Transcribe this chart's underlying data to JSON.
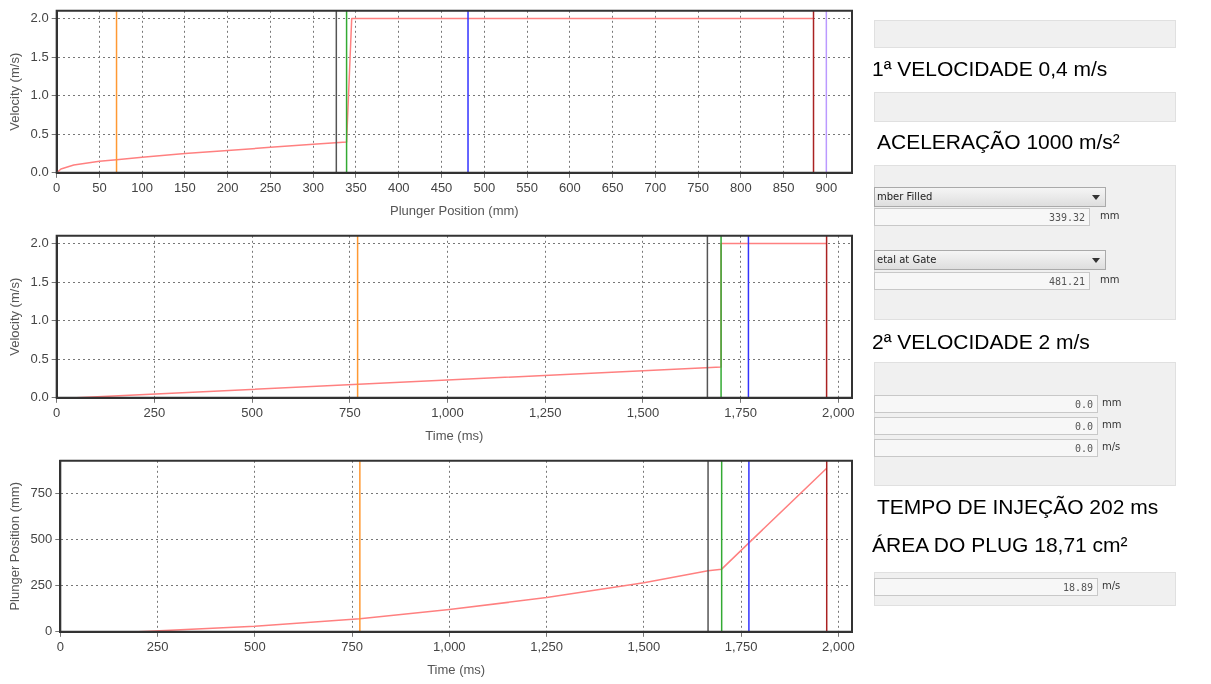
{
  "chart_data": [
    {
      "type": "line",
      "xlabel": "Plunger Position (mm)",
      "ylabel": "Velocity (m/s)",
      "x": [
        0,
        5,
        20,
        50,
        70,
        100,
        150,
        200,
        250,
        300,
        339,
        345,
        885
      ],
      "series": [
        {
          "color": "#ff8080",
          "values": [
            0,
            0.05,
            0.1,
            0.15,
            0.17,
            0.2,
            0.25,
            0.29,
            0.33,
            0.37,
            0.4,
            2.0,
            2.0
          ]
        }
      ],
      "xlim": [
        0,
        930
      ],
      "xticks": [
        0,
        50,
        100,
        150,
        200,
        250,
        300,
        350,
        400,
        450,
        500,
        550,
        600,
        650,
        700,
        750,
        800,
        850,
        900
      ],
      "ylim": [
        0,
        2.1
      ],
      "yticks": [
        {
          "value": 0,
          "label": "0.0"
        },
        {
          "value": 0.5,
          "label": "0.5"
        },
        {
          "value": 1,
          "label": "1.0"
        },
        {
          "value": 1.5,
          "label": "1.5"
        },
        {
          "value": 2,
          "label": "2.0"
        }
      ],
      "grid": true,
      "ref_lines": [
        {
          "axis": "x",
          "value": 70,
          "color": "#ff9933"
        },
        {
          "axis": "x",
          "value": 327,
          "color": "#555555"
        },
        {
          "axis": "x",
          "value": 339,
          "color": "#33aa33"
        },
        {
          "axis": "x",
          "value": 481,
          "color": "#3333ff"
        },
        {
          "axis": "x",
          "value": 885,
          "color": "#aa2222"
        },
        {
          "axis": "x",
          "value": 900,
          "color": "#bb99ff"
        }
      ]
    },
    {
      "type": "line",
      "xlabel": "Time (ms)",
      "ylabel": "Velocity (m/s)",
      "x": [
        50,
        1700,
        1700,
        1970
      ],
      "series": [
        {
          "color": "#ff8080",
          "values": [
            0,
            0.4,
            2.0,
            2.0
          ]
        }
      ],
      "xlim": [
        0,
        2035
      ],
      "xticks": [
        0,
        250,
        500,
        750,
        {
          "value": 1000,
          "label": "1,000"
        },
        {
          "value": 1250,
          "label": "1,250"
        },
        {
          "value": 1500,
          "label": "1,500"
        },
        {
          "value": 1750,
          "label": "1,750"
        },
        {
          "value": 2000,
          "label": "2,000"
        }
      ],
      "ylim": [
        0,
        2.1
      ],
      "yticks": [
        {
          "value": 0,
          "label": "0.0"
        },
        {
          "value": 0.5,
          "label": "0.5"
        },
        {
          "value": 1,
          "label": "1.0"
        },
        {
          "value": 1.5,
          "label": "1.5"
        },
        {
          "value": 2,
          "label": "2.0"
        }
      ],
      "grid": true,
      "ref_lines": [
        {
          "axis": "x",
          "value": 770,
          "color": "#ff9933"
        },
        {
          "axis": "x",
          "value": 1665,
          "color": "#555555"
        },
        {
          "axis": "x",
          "value": 1700,
          "color": "#33aa33"
        },
        {
          "axis": "x",
          "value": 1770,
          "color": "#3333ff"
        },
        {
          "axis": "x",
          "value": 1970,
          "color": "#aa2222"
        }
      ]
    },
    {
      "type": "line",
      "xlabel": "Time (ms)",
      "ylabel": "Plunger Position (mm)",
      "x": [
        200,
        500,
        770,
        1000,
        1250,
        1500,
        1665,
        1700,
        1770,
        1970
      ],
      "series": [
        {
          "color": "#ff8080",
          "values": [
            0,
            30,
            70,
            120,
            185,
            265,
            330,
            339,
            481,
            885
          ]
        }
      ],
      "xlim": [
        0,
        2035
      ],
      "xticks": [
        0,
        250,
        500,
        750,
        {
          "value": 1000,
          "label": "1,000"
        },
        {
          "value": 1250,
          "label": "1,250"
        },
        {
          "value": 1500,
          "label": "1,500"
        },
        {
          "value": 1750,
          "label": "1,750"
        },
        {
          "value": 2000,
          "label": "2,000"
        }
      ],
      "ylim": [
        0,
        925
      ],
      "yticks": [
        0,
        250,
        500,
        750
      ],
      "grid": true,
      "ref_lines": [
        {
          "axis": "x",
          "value": 770,
          "color": "#ff9933"
        },
        {
          "axis": "x",
          "value": 1665,
          "color": "#555555"
        },
        {
          "axis": "x",
          "value": 1700,
          "color": "#33aa33"
        },
        {
          "axis": "x",
          "value": 1770,
          "color": "#3333ff"
        },
        {
          "axis": "x",
          "value": 1970,
          "color": "#aa2222"
        }
      ]
    },
    {
      "type": "other",
      "annotations": [
        "1ª VELOCIDADE 0,4 m/s",
        "ACELERAÇÃO 1000 m/s²",
        "mber Filled",
        "339.32",
        "mm",
        "etal at Gate",
        "481.21",
        "mm",
        "2ª VELOCIDADE 2 m/s",
        "0.0",
        "mm",
        "0.0",
        "mm",
        "0.0",
        "m/s",
        "TEMPO DE INJEÇÃO 202 ms",
        "ÁREA DO PLUG 18,71 cm²",
        "18.89",
        "m/s"
      ]
    }
  ]
}
